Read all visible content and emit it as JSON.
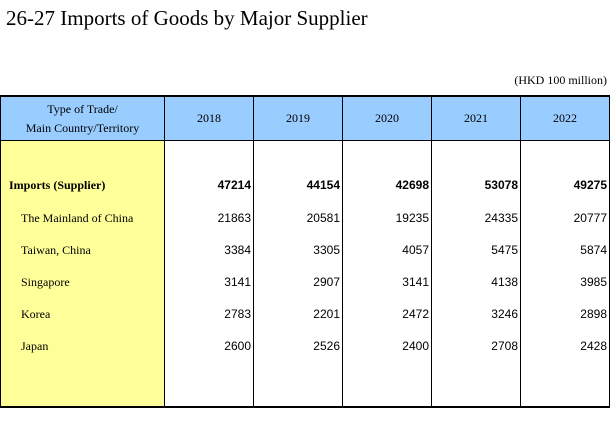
{
  "title": "26-27  Imports of Goods by Major Supplier",
  "unit": "(HKD 100 million)",
  "header": {
    "type_line1": "Type of Trade/",
    "type_line2": "Main Country/Territory",
    "years": [
      "2018",
      "2019",
      "2020",
      "2021",
      "2022"
    ]
  },
  "rows": [
    {
      "label": "Imports (Supplier)",
      "values": [
        "47214",
        "44154",
        "42698",
        "53078",
        "49275"
      ]
    },
    {
      "label": "The Mainland of China",
      "values": [
        "21863",
        "20581",
        "19235",
        "24335",
        "20777"
      ]
    },
    {
      "label": "Taiwan, China",
      "values": [
        "3384",
        "3305",
        "4057",
        "5475",
        "5874"
      ]
    },
    {
      "label": "Singapore",
      "values": [
        "3141",
        "2907",
        "3141",
        "4138",
        "3985"
      ]
    },
    {
      "label": "Korea",
      "values": [
        "2783",
        "2201",
        "2472",
        "3246",
        "2898"
      ]
    },
    {
      "label": "Japan",
      "values": [
        "2600",
        "2526",
        "2400",
        "2708",
        "2428"
      ]
    }
  ],
  "colors": {
    "header_bg": "#99ccff",
    "label_col_bg": "#ffff99"
  }
}
